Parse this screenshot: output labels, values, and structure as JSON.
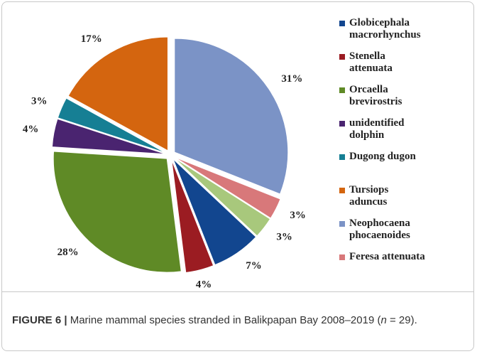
{
  "chart_data": {
    "type": "pie",
    "categories": [
      "Neophocaena phocaenoides",
      "Feresa attenuata",
      null,
      "Globicephala macrorhynchus",
      "Stenella attenuata",
      "Orcaella brevirostris",
      "unidentified dolphin",
      "Dugong dugon",
      "Tursiops aduncus"
    ],
    "values": [
      31,
      3,
      3,
      7,
      4,
      28,
      4,
      3,
      17
    ],
    "value_labels": [
      "31%",
      "3%",
      "3%",
      "7%",
      "4%",
      "28%",
      "4%",
      "3%",
      "17%"
    ],
    "colors": [
      "#7b93c6",
      "#d8787a",
      "#a8c87c",
      "#12468f",
      "#9b1c22",
      "#5f8a26",
      "#4a2470",
      "#167f94",
      "#d4650f"
    ]
  },
  "caption": {
    "label": "FIGURE 6 |",
    "text": "Marine mammal species stranded in Balikpapan Bay 2008–2019 (",
    "n": "n",
    "rest": " = 29)."
  }
}
